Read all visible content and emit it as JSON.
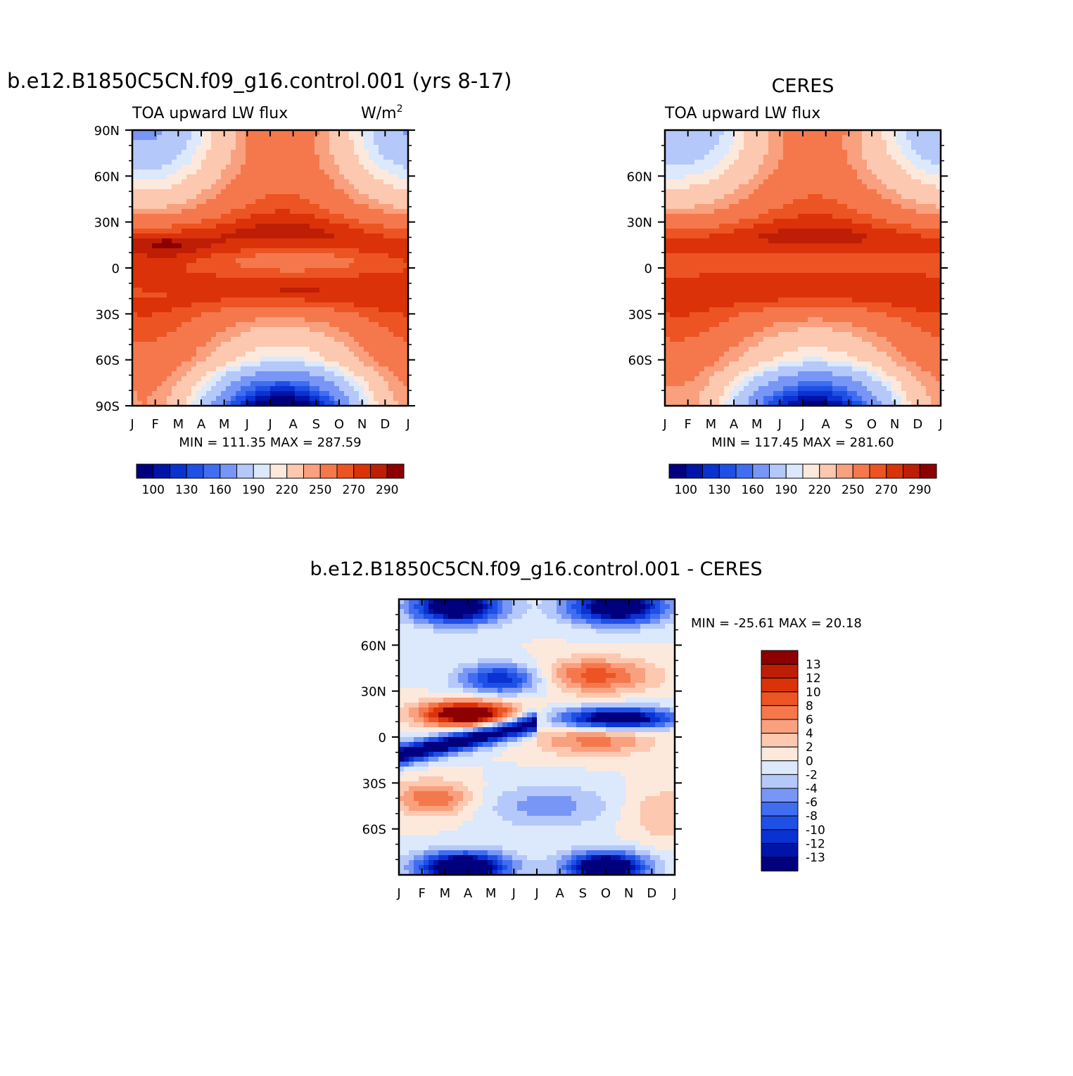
{
  "palette": {
    "colors": [
      "#00007f",
      "#0014a8",
      "#0a32d2",
      "#1e50e6",
      "#416ef0",
      "#7896f5",
      "#b4c8fa",
      "#dce8fc",
      "#fde9dc",
      "#fcc8b0",
      "#f9a07e",
      "#f5784d",
      "#ed5423",
      "#dc320a",
      "#be1e05",
      "#8c0000"
    ],
    "note_colors_role": "blue-white-red diverging"
  },
  "chart_data": [
    {
      "type": "heatmap",
      "panel": "model",
      "title": "b.e12.B1850C5CN.f09_g16.control.001 (yrs 8-17)",
      "subtitle_left": "TOA upward LW flux",
      "units": "W/m",
      "units_superscript": "2",
      "x_ticks": [
        "J",
        "F",
        "M",
        "A",
        "M",
        "J",
        "J",
        "A",
        "S",
        "O",
        "N",
        "D",
        "J"
      ],
      "y_ticks": [
        "90N",
        "60N",
        "30N",
        "0",
        "30S",
        "60S",
        "90S"
      ],
      "ylim": [
        -90,
        90
      ],
      "min_max_text": "MIN = 111.35 MAX = 287.59",
      "min": 111.35,
      "max": 287.59,
      "colorbar_labels": [
        "100",
        "130",
        "160",
        "190",
        "220",
        "250",
        "270",
        "290"
      ],
      "contour_levels": [
        100,
        110,
        120,
        130,
        140,
        160,
        180,
        190,
        200,
        220,
        230,
        250,
        260,
        270,
        280,
        290
      ]
    },
    {
      "type": "heatmap",
      "panel": "observations",
      "title": "CERES",
      "subtitle_left": "TOA upward LW flux",
      "x_ticks": [
        "J",
        "F",
        "M",
        "A",
        "M",
        "J",
        "J",
        "A",
        "S",
        "O",
        "N",
        "D",
        "J"
      ],
      "y_ticks": [
        "60N",
        "30N",
        "0",
        "30S",
        "60S"
      ],
      "ylim": [
        -90,
        90
      ],
      "min_max_text": "MIN = 117.45 MAX = 281.60",
      "min": 117.45,
      "max": 281.6,
      "colorbar_labels": [
        "100",
        "130",
        "160",
        "190",
        "220",
        "250",
        "270",
        "290"
      ]
    },
    {
      "type": "heatmap",
      "panel": "difference",
      "title": "b.e12.B1850C5CN.f09_g16.control.001 - CERES",
      "x_ticks": [
        "J",
        "F",
        "M",
        "A",
        "M",
        "J",
        "J",
        "A",
        "S",
        "O",
        "N",
        "D",
        "J"
      ],
      "y_ticks": [
        "60N",
        "30N",
        "0",
        "30S",
        "60S"
      ],
      "ylim": [
        -90,
        90
      ],
      "min_max_text": "MIN = -25.61 MAX =  20.18",
      "min": -25.61,
      "max": 20.18,
      "colorbar_labels": [
        "13",
        "12",
        "10",
        "8",
        "6",
        "4",
        "2",
        "0",
        "-2",
        "-4",
        "-6",
        "-8",
        "-10",
        "-12",
        "-13"
      ]
    }
  ]
}
